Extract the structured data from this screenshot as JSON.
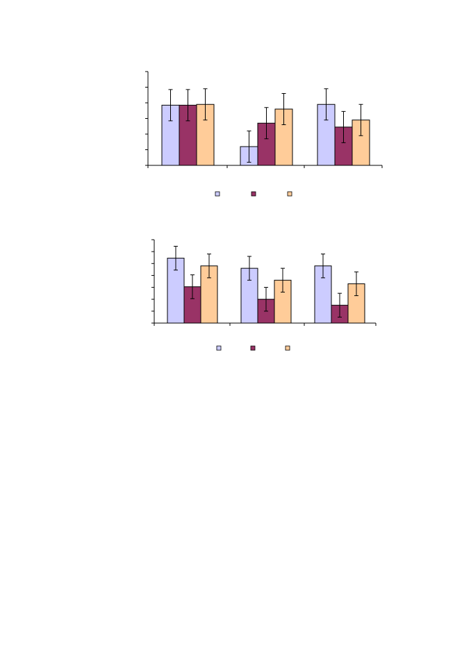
{
  "chart_data": [
    {
      "type": "bar",
      "categories": [
        "",
        "",
        ""
      ],
      "ylim": [
        0,
        6
      ],
      "grid": false,
      "legend_placement": "bottom",
      "error_bars": true,
      "series": [
        {
          "color": "#ccccff",
          "values": [
            3.85,
            1.2,
            3.9
          ],
          "errors": [
            1.0,
            1.0,
            1.0
          ]
        },
        {
          "color": "#993366",
          "values": [
            3.85,
            2.7,
            2.45
          ],
          "errors": [
            1.0,
            1.0,
            1.0
          ]
        },
        {
          "color": "#ffcc99",
          "values": [
            3.9,
            3.6,
            2.9
          ],
          "errors": [
            1.0,
            1.0,
            1.0
          ]
        }
      ]
    },
    {
      "type": "bar",
      "categories": [
        "",
        "",
        ""
      ],
      "ylim": [
        0,
        7
      ],
      "grid": false,
      "legend_placement": "bottom",
      "error_bars": true,
      "series": [
        {
          "color": "#ccccff",
          "values": [
            5.45,
            4.6,
            4.8
          ],
          "errors": [
            1.0,
            1.0,
            1.0
          ]
        },
        {
          "color": "#993366",
          "values": [
            3.05,
            2.0,
            1.5
          ],
          "errors": [
            1.0,
            1.0,
            1.0
          ]
        },
        {
          "color": "#ffcc99",
          "values": [
            4.8,
            3.6,
            3.3
          ],
          "errors": [
            1.0,
            1.0,
            1.0
          ]
        }
      ]
    }
  ]
}
